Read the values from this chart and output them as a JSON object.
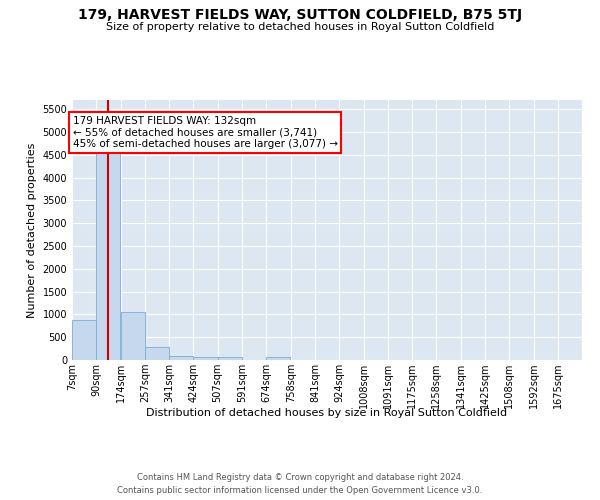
{
  "title": "179, HARVEST FIELDS WAY, SUTTON COLDFIELD, B75 5TJ",
  "subtitle": "Size of property relative to detached houses in Royal Sutton Coldfield",
  "xlabel": "Distribution of detached houses by size in Royal Sutton Coldfield",
  "ylabel": "Number of detached properties",
  "footer_line1": "Contains HM Land Registry data © Crown copyright and database right 2024.",
  "footer_line2": "Contains public sector information licensed under the Open Government Licence v3.0.",
  "annotation_title": "179 HARVEST FIELDS WAY: 132sqm",
  "annotation_line2": "← 55% of detached houses are smaller (3,741)",
  "annotation_line3": "45% of semi-detached houses are larger (3,077) →",
  "bar_color": "#c5d8ee",
  "bar_edge_color": "#7aadd4",
  "vline_color": "#cc0000",
  "vline_x": 132,
  "bg_color": "#dce7f2",
  "categories": [
    "7sqm",
    "90sqm",
    "174sqm",
    "257sqm",
    "341sqm",
    "424sqm",
    "507sqm",
    "591sqm",
    "674sqm",
    "758sqm",
    "841sqm",
    "924sqm",
    "1008sqm",
    "1091sqm",
    "1175sqm",
    "1258sqm",
    "1341sqm",
    "1425sqm",
    "1508sqm",
    "1592sqm",
    "1675sqm"
  ],
  "bin_edges": [
    7,
    90,
    174,
    257,
    341,
    424,
    507,
    591,
    674,
    758,
    841,
    924,
    1008,
    1091,
    1175,
    1258,
    1341,
    1425,
    1508,
    1592,
    1675
  ],
  "values": [
    880,
    4560,
    1060,
    285,
    90,
    70,
    65,
    0,
    60,
    0,
    0,
    0,
    0,
    0,
    0,
    0,
    0,
    0,
    0,
    0
  ],
  "ylim": [
    0,
    5700
  ],
  "yticks": [
    0,
    500,
    1000,
    1500,
    2000,
    2500,
    3000,
    3500,
    4000,
    4500,
    5000,
    5500
  ],
  "title_fontsize": 10,
  "subtitle_fontsize": 8,
  "ylabel_fontsize": 8,
  "xlabel_fontsize": 8,
  "tick_fontsize": 7,
  "footer_fontsize": 6
}
